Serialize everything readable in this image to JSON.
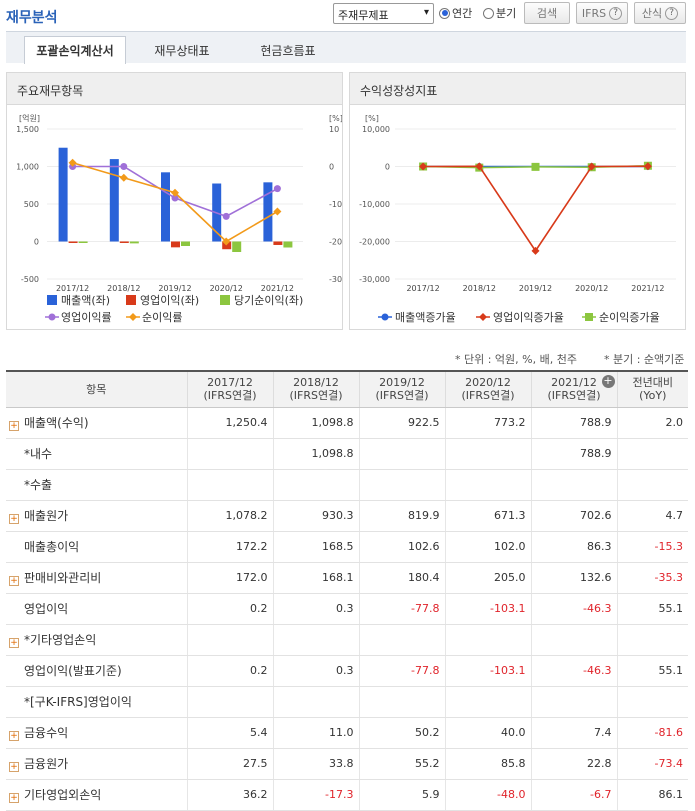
{
  "header": {
    "title": "재무분석",
    "select_value": "주재무제표",
    "radio_annual": "연간",
    "radio_quarter": "분기",
    "search_btn": "검색",
    "ifrs_btn": "IFRS",
    "formula_btn": "산식"
  },
  "tabs": [
    "포괄손익계산서",
    "재무상태표",
    "현금흐름표"
  ],
  "left_panel": {
    "title": "주요재무항목"
  },
  "right_panel": {
    "title": "수익성장성지표"
  },
  "colors": {
    "sales": "#2a62d8",
    "op": "#d83a1a",
    "net": "#8cc63f",
    "op_margin": "#a070d8",
    "net_margin": "#f29a1a"
  },
  "chart_data": [
    {
      "type": "bar",
      "categories": [
        "2017/12",
        "2018/12",
        "2019/12",
        "2020/12",
        "2021/12"
      ],
      "ylabel": "[억원]",
      "y2label": "[%]",
      "ylim": [
        -500,
        1500
      ],
      "y2lim": [
        -30,
        10
      ],
      "yticks": [
        "1,500",
        "1,000",
        "500",
        "0",
        "-500"
      ],
      "y2ticks": [
        "10",
        "0",
        "-10",
        "-20",
        "-30"
      ],
      "series": [
        {
          "name": "매출액(좌)",
          "values": [
            1250.4,
            1098.8,
            922.5,
            773.2,
            788.9
          ]
        },
        {
          "name": "영업이익(좌)",
          "values": [
            0.2,
            0.3,
            -77.8,
            -103.1,
            -46.3
          ]
        },
        {
          "name": "당기순이익(좌)",
          "values": [
            -20,
            -25,
            -60,
            -140,
            -80
          ]
        }
      ],
      "lines": [
        {
          "name": "영업이익률",
          "values": [
            0.0,
            0.0,
            -8.4,
            -13.3,
            -5.9
          ]
        },
        {
          "name": "순이익률",
          "values": [
            1.0,
            -3.0,
            -7.0,
            -20.0,
            -12.0
          ]
        }
      ]
    },
    {
      "type": "line",
      "categories": [
        "2017/12",
        "2018/12",
        "2019/12",
        "2020/12",
        "2021/12"
      ],
      "ylabel": "[%]",
      "ylim": [
        -30000,
        10000
      ],
      "yticks": [
        "10,000",
        "0",
        "-10,000",
        "-20,000",
        "-30,000"
      ],
      "series": [
        {
          "name": "매출액증가율",
          "values": [
            0,
            -12.1,
            -16.0,
            -16.2,
            2.0
          ]
        },
        {
          "name": "영업이익증가율",
          "values": [
            0,
            50,
            -22500,
            0,
            55.1
          ]
        },
        {
          "name": "순이익증가율",
          "values": [
            0,
            -300,
            -100,
            -200,
            200
          ]
        }
      ]
    }
  ],
  "meta": {
    "unit": "* 단위 : 억원, %, 배, 천주",
    "quarter": "* 분기 : 순액기준"
  },
  "table": {
    "headers": [
      "항목",
      "2017/12",
      "2018/12",
      "2019/12",
      "2020/12",
      "2021/12",
      "전년대비"
    ],
    "subheaders": [
      "",
      "(IFRS연결)",
      "(IFRS연결)",
      "(IFRS연결)",
      "(IFRS연결)",
      "(IFRS연결)",
      "(YoY)"
    ],
    "rows": [
      {
        "label": "매출액(수익)",
        "plus": true,
        "v": [
          "1,250.4",
          "1,098.8",
          "922.5",
          "773.2",
          "788.9",
          "2.0"
        ]
      },
      {
        "label": "*내수",
        "plus": false,
        "v": [
          "",
          "1,098.8",
          "",
          "",
          "788.9",
          ""
        ]
      },
      {
        "label": "*수출",
        "plus": false,
        "v": [
          "",
          "",
          "",
          "",
          "",
          ""
        ]
      },
      {
        "label": "매출원가",
        "plus": true,
        "v": [
          "1,078.2",
          "930.3",
          "819.9",
          "671.3",
          "702.6",
          "4.7"
        ]
      },
      {
        "label": "매출총이익",
        "plus": false,
        "v": [
          "172.2",
          "168.5",
          "102.6",
          "102.0",
          "86.3",
          "-15.3"
        ]
      },
      {
        "label": "판매비와관리비",
        "plus": true,
        "v": [
          "172.0",
          "168.1",
          "180.4",
          "205.0",
          "132.6",
          "-35.3"
        ]
      },
      {
        "label": "영업이익",
        "plus": false,
        "v": [
          "0.2",
          "0.3",
          "-77.8",
          "-103.1",
          "-46.3",
          "55.1"
        ]
      },
      {
        "label": "*기타영업손익",
        "plus": true,
        "v": [
          "",
          "",
          "",
          "",
          "",
          ""
        ]
      },
      {
        "label": "영업이익(발표기준)",
        "plus": false,
        "v": [
          "0.2",
          "0.3",
          "-77.8",
          "-103.1",
          "-46.3",
          "55.1"
        ]
      },
      {
        "label": "*[구K-IFRS]영업이익",
        "plus": false,
        "v": [
          "",
          "",
          "",
          "",
          "",
          ""
        ]
      },
      {
        "label": "금융수익",
        "plus": true,
        "v": [
          "5.4",
          "11.0",
          "50.2",
          "40.0",
          "7.4",
          "-81.6"
        ]
      },
      {
        "label": "금융원가",
        "plus": true,
        "v": [
          "27.5",
          "33.8",
          "55.2",
          "85.8",
          "22.8",
          "-73.4"
        ]
      },
      {
        "label": "기타영업외손익",
        "plus": true,
        "v": [
          "36.2",
          "-17.3",
          "5.9",
          "-48.0",
          "-6.7",
          "86.1"
        ]
      }
    ]
  }
}
